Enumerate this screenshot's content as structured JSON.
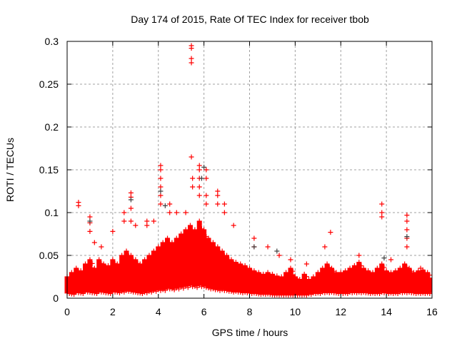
{
  "chart_data": {
    "type": "scatter",
    "title": "Day 174 of 2015, Rate Of TEC Index for receiver tbob",
    "xlabel": "GPS time / hours",
    "ylabel": "ROTI / TECUs",
    "xlim": [
      0,
      16
    ],
    "ylim": [
      0,
      0.3
    ],
    "xticks": [
      "0",
      "2",
      "4",
      "6",
      "8",
      "10",
      "12",
      "14",
      "16"
    ],
    "yticks": [
      "0",
      "0.05",
      "0.1",
      "0.15",
      "0.2",
      "0.25",
      "0.3"
    ],
    "grid": true,
    "marker": "+",
    "colors": {
      "primary": "#ff0000",
      "secondary": "#404040"
    },
    "band": [
      [
        0.0,
        [
          0.006,
          0.012,
          0.018,
          0.025
        ]
      ],
      [
        0.2,
        [
          0.005,
          0.013,
          0.02,
          0.03
        ]
      ],
      [
        0.4,
        [
          0.007,
          0.015,
          0.022,
          0.035
        ]
      ],
      [
        0.6,
        [
          0.006,
          0.014,
          0.024,
          0.032
        ]
      ],
      [
        0.8,
        [
          0.008,
          0.016,
          0.025,
          0.04
        ]
      ],
      [
        1.0,
        [
          0.007,
          0.015,
          0.026,
          0.045
        ]
      ],
      [
        1.2,
        [
          0.006,
          0.014,
          0.022,
          0.035
        ]
      ],
      [
        1.4,
        [
          0.008,
          0.017,
          0.028,
          0.045
        ]
      ],
      [
        1.6,
        [
          0.007,
          0.016,
          0.026,
          0.04
        ]
      ],
      [
        1.8,
        [
          0.006,
          0.015,
          0.025,
          0.038
        ]
      ],
      [
        2.0,
        [
          0.008,
          0.017,
          0.027,
          0.045
        ]
      ],
      [
        2.2,
        [
          0.007,
          0.016,
          0.026,
          0.04
        ]
      ],
      [
        2.4,
        [
          0.008,
          0.018,
          0.03,
          0.05
        ]
      ],
      [
        2.6,
        [
          0.009,
          0.02,
          0.032,
          0.055
        ]
      ],
      [
        2.8,
        [
          0.008,
          0.018,
          0.03,
          0.05
        ]
      ],
      [
        3.0,
        [
          0.007,
          0.017,
          0.028,
          0.045
        ]
      ],
      [
        3.2,
        [
          0.006,
          0.015,
          0.025,
          0.04
        ]
      ],
      [
        3.4,
        [
          0.007,
          0.016,
          0.027,
          0.045
        ]
      ],
      [
        3.6,
        [
          0.008,
          0.018,
          0.03,
          0.05
        ]
      ],
      [
        3.8,
        [
          0.009,
          0.02,
          0.032,
          0.055
        ]
      ],
      [
        4.0,
        [
          0.01,
          0.022,
          0.035,
          0.06
        ]
      ],
      [
        4.2,
        [
          0.01,
          0.024,
          0.04,
          0.065
        ]
      ],
      [
        4.4,
        [
          0.012,
          0.025,
          0.04,
          0.07
        ]
      ],
      [
        4.6,
        [
          0.011,
          0.024,
          0.038,
          0.065
        ]
      ],
      [
        4.8,
        [
          0.012,
          0.026,
          0.042,
          0.07
        ]
      ],
      [
        5.0,
        [
          0.013,
          0.028,
          0.045,
          0.075
        ]
      ],
      [
        5.2,
        [
          0.014,
          0.03,
          0.048,
          0.08
        ]
      ],
      [
        5.4,
        [
          0.015,
          0.03,
          0.05,
          0.085
        ]
      ],
      [
        5.6,
        [
          0.014,
          0.029,
          0.048,
          0.08
        ]
      ],
      [
        5.8,
        [
          0.015,
          0.03,
          0.05,
          0.09
        ]
      ],
      [
        6.0,
        [
          0.014,
          0.028,
          0.046,
          0.08
        ]
      ],
      [
        6.2,
        [
          0.012,
          0.026,
          0.042,
          0.07
        ]
      ],
      [
        6.4,
        [
          0.011,
          0.024,
          0.04,
          0.065
        ]
      ],
      [
        6.6,
        [
          0.01,
          0.022,
          0.036,
          0.06
        ]
      ],
      [
        6.8,
        [
          0.01,
          0.02,
          0.034,
          0.055
        ]
      ],
      [
        7.0,
        [
          0.009,
          0.02,
          0.032,
          0.05
        ]
      ],
      [
        7.2,
        [
          0.008,
          0.018,
          0.03,
          0.045
        ]
      ],
      [
        7.4,
        [
          0.008,
          0.017,
          0.028,
          0.042
        ]
      ],
      [
        7.6,
        [
          0.007,
          0.016,
          0.026,
          0.04
        ]
      ],
      [
        7.8,
        [
          0.007,
          0.015,
          0.025,
          0.038
        ]
      ],
      [
        8.0,
        [
          0.006,
          0.014,
          0.024,
          0.035
        ]
      ],
      [
        8.2,
        [
          0.006,
          0.013,
          0.022,
          0.032
        ]
      ],
      [
        8.4,
        [
          0.005,
          0.012,
          0.02,
          0.03
        ]
      ],
      [
        8.6,
        [
          0.005,
          0.012,
          0.02,
          0.028
        ]
      ],
      [
        8.8,
        [
          0.005,
          0.011,
          0.019,
          0.03
        ]
      ],
      [
        9.0,
        [
          0.004,
          0.01,
          0.018,
          0.028
        ]
      ],
      [
        9.2,
        [
          0.004,
          0.01,
          0.017,
          0.026
        ]
      ],
      [
        9.4,
        [
          0.004,
          0.01,
          0.016,
          0.025
        ]
      ],
      [
        9.6,
        [
          0.004,
          0.009,
          0.016,
          0.03
        ]
      ],
      [
        9.8,
        [
          0.004,
          0.01,
          0.018,
          0.035
        ]
      ],
      [
        10.0,
        [
          0.004,
          0.01,
          0.016,
          0.025
        ]
      ],
      [
        10.2,
        [
          0.004,
          0.009,
          0.015,
          0.022
        ]
      ],
      [
        10.4,
        [
          0.004,
          0.009,
          0.015,
          0.028
        ]
      ],
      [
        10.6,
        [
          0.005,
          0.01,
          0.016,
          0.022
        ]
      ],
      [
        10.8,
        [
          0.006,
          0.012,
          0.018,
          0.025
        ]
      ],
      [
        11.0,
        [
          0.006,
          0.013,
          0.02,
          0.03
        ]
      ],
      [
        11.2,
        [
          0.007,
          0.014,
          0.022,
          0.035
        ]
      ],
      [
        11.4,
        [
          0.007,
          0.015,
          0.024,
          0.04
        ]
      ],
      [
        11.6,
        [
          0.007,
          0.014,
          0.022,
          0.035
        ]
      ],
      [
        11.8,
        [
          0.006,
          0.013,
          0.02,
          0.03
        ]
      ],
      [
        12.0,
        [
          0.006,
          0.013,
          0.02,
          0.03
        ]
      ],
      [
        12.2,
        [
          0.006,
          0.014,
          0.022,
          0.032
        ]
      ],
      [
        12.4,
        [
          0.007,
          0.015,
          0.024,
          0.035
        ]
      ],
      [
        12.6,
        [
          0.007,
          0.015,
          0.025,
          0.038
        ]
      ],
      [
        12.8,
        [
          0.007,
          0.016,
          0.026,
          0.042
        ]
      ],
      [
        13.0,
        [
          0.007,
          0.015,
          0.024,
          0.035
        ]
      ],
      [
        13.2,
        [
          0.006,
          0.014,
          0.022,
          0.032
        ]
      ],
      [
        13.4,
        [
          0.006,
          0.013,
          0.02,
          0.03
        ]
      ],
      [
        13.6,
        [
          0.006,
          0.014,
          0.022,
          0.035
        ]
      ],
      [
        13.8,
        [
          0.007,
          0.015,
          0.025,
          0.04
        ]
      ],
      [
        14.0,
        [
          0.006,
          0.014,
          0.022,
          0.032
        ]
      ],
      [
        14.2,
        [
          0.006,
          0.013,
          0.021,
          0.03
        ]
      ],
      [
        14.4,
        [
          0.006,
          0.014,
          0.022,
          0.032
        ]
      ],
      [
        14.6,
        [
          0.007,
          0.015,
          0.024,
          0.035
        ]
      ],
      [
        14.8,
        [
          0.007,
          0.016,
          0.026,
          0.04
        ]
      ],
      [
        15.0,
        [
          0.007,
          0.015,
          0.024,
          0.035
        ]
      ],
      [
        15.2,
        [
          0.006,
          0.013,
          0.02,
          0.03
        ]
      ],
      [
        15.4,
        [
          0.006,
          0.013,
          0.021,
          0.032
        ]
      ],
      [
        15.6,
        [
          0.006,
          0.014,
          0.022,
          0.033
        ]
      ],
      [
        15.8,
        [
          0.006,
          0.013,
          0.02,
          0.03
        ]
      ]
    ],
    "peaks": [
      [
        0.5,
        0.112
      ],
      [
        0.5,
        0.108
      ],
      [
        1.0,
        0.095
      ],
      [
        1.0,
        0.088
      ],
      [
        1.0,
        0.078
      ],
      [
        1.2,
        0.065
      ],
      [
        1.5,
        0.06
      ],
      [
        2.0,
        0.078
      ],
      [
        2.5,
        0.1
      ],
      [
        2.5,
        0.09
      ],
      [
        2.8,
        0.123
      ],
      [
        2.8,
        0.118
      ],
      [
        2.8,
        0.105
      ],
      [
        2.8,
        0.09
      ],
      [
        3.0,
        0.085
      ],
      [
        3.5,
        0.09
      ],
      [
        3.5,
        0.085
      ],
      [
        3.8,
        0.09
      ],
      [
        4.1,
        0.155
      ],
      [
        4.1,
        0.15
      ],
      [
        4.1,
        0.14
      ],
      [
        4.1,
        0.13
      ],
      [
        4.1,
        0.12
      ],
      [
        4.1,
        0.11
      ],
      [
        4.5,
        0.1
      ],
      [
        4.5,
        0.11
      ],
      [
        4.8,
        0.1
      ],
      [
        5.45,
        0.295
      ],
      [
        5.45,
        0.292
      ],
      [
        5.45,
        0.28
      ],
      [
        5.45,
        0.275
      ],
      [
        5.45,
        0.165
      ],
      [
        5.5,
        0.14
      ],
      [
        5.5,
        0.13
      ],
      [
        5.2,
        0.1
      ],
      [
        5.8,
        0.155
      ],
      [
        5.8,
        0.15
      ],
      [
        5.8,
        0.14
      ],
      [
        5.8,
        0.13
      ],
      [
        5.8,
        0.12
      ],
      [
        6.1,
        0.15
      ],
      [
        6.1,
        0.14
      ],
      [
        6.1,
        0.12
      ],
      [
        6.1,
        0.11
      ],
      [
        6.6,
        0.125
      ],
      [
        6.6,
        0.12
      ],
      [
        6.6,
        0.11
      ],
      [
        6.9,
        0.11
      ],
      [
        6.9,
        0.1
      ],
      [
        7.3,
        0.085
      ],
      [
        8.2,
        0.07
      ],
      [
        8.2,
        0.06
      ],
      [
        8.8,
        0.06
      ],
      [
        9.3,
        0.05
      ],
      [
        9.8,
        0.045
      ],
      [
        10.5,
        0.04
      ],
      [
        11.3,
        0.06
      ],
      [
        11.55,
        0.077
      ],
      [
        12.8,
        0.05
      ],
      [
        13.8,
        0.11
      ],
      [
        13.8,
        0.1
      ],
      [
        13.8,
        0.095
      ],
      [
        14.9,
        0.097
      ],
      [
        14.9,
        0.09
      ],
      [
        14.9,
        0.08
      ],
      [
        14.9,
        0.07
      ],
      [
        14.9,
        0.06
      ],
      [
        14.2,
        0.045
      ],
      [
        15.5,
        0.035
      ]
    ],
    "secondary_points": [
      [
        1.0,
        0.09
      ],
      [
        2.8,
        0.115
      ],
      [
        4.1,
        0.125
      ],
      [
        4.3,
        0.108
      ],
      [
        5.9,
        0.14
      ],
      [
        6.0,
        0.153
      ],
      [
        8.2,
        0.06
      ],
      [
        9.2,
        0.055
      ],
      [
        13.9,
        0.047
      ],
      [
        14.9,
        0.072
      ]
    ]
  }
}
